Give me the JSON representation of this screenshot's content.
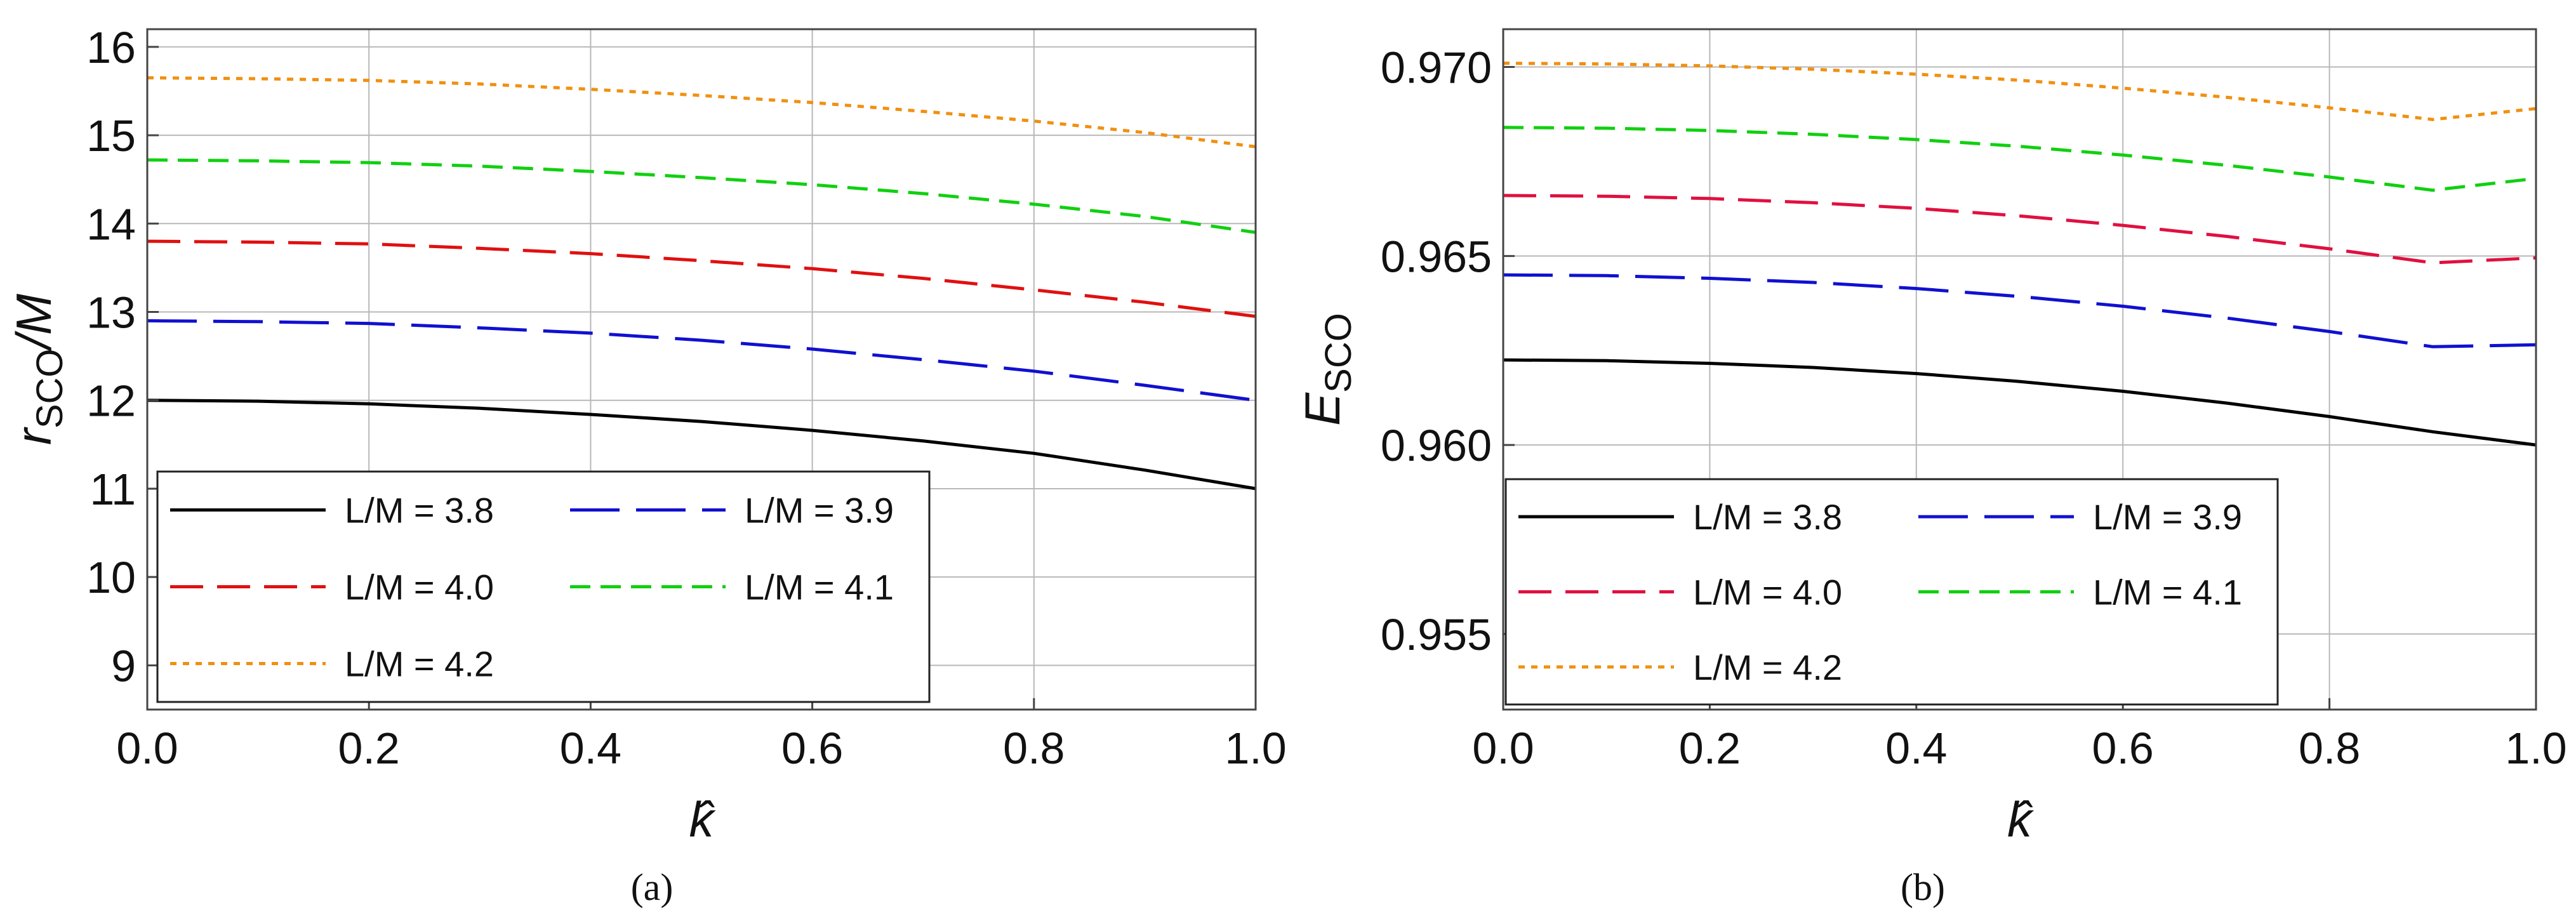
{
  "chart_data": [
    {
      "type": "line",
      "caption": "(a)",
      "ylabel": {
        "main": "r",
        "sub": "SCO",
        "tail": "/M"
      },
      "xlabel": "k̂",
      "xlim": [
        0,
        1
      ],
      "ylim": [
        8.5,
        16.2
      ],
      "xticks": [
        "0.0",
        "0.2",
        "0.4",
        "0.6",
        "0.8",
        "1.0"
      ],
      "yticks": [
        "9",
        "10",
        "11",
        "12",
        "13",
        "14",
        "15",
        "16"
      ],
      "grid": true,
      "legend_position": "bottom-left",
      "x": [
        0.0,
        0.1,
        0.2,
        0.3,
        0.4,
        0.5,
        0.6,
        0.7,
        0.8,
        0.9,
        1.0
      ],
      "series": [
        {
          "name": "L/M = 3.8",
          "color": "#000000",
          "dash": "solid",
          "values": [
            12.0,
            11.99,
            11.96,
            11.91,
            11.84,
            11.76,
            11.66,
            11.54,
            11.4,
            11.21,
            11.0
          ]
        },
        {
          "name": "L/M = 3.9",
          "color": "#1010d0",
          "dash": "long",
          "values": [
            12.9,
            12.89,
            12.87,
            12.82,
            12.76,
            12.68,
            12.58,
            12.46,
            12.33,
            12.17,
            12.0
          ]
        },
        {
          "name": "L/M = 4.0",
          "color": "#e01010",
          "dash": "medium",
          "values": [
            13.8,
            13.79,
            13.77,
            13.72,
            13.66,
            13.58,
            13.49,
            13.38,
            13.25,
            13.11,
            12.95
          ]
        },
        {
          "name": "L/M = 4.1",
          "color": "#10d010",
          "dash": "short",
          "values": [
            14.72,
            14.71,
            14.69,
            14.65,
            14.59,
            14.52,
            14.44,
            14.34,
            14.22,
            14.08,
            13.9
          ]
        },
        {
          "name": "L/M = 4.2",
          "color": "#f09010",
          "dash": "dotted",
          "values": [
            15.65,
            15.64,
            15.62,
            15.58,
            15.52,
            15.45,
            15.37,
            15.27,
            15.16,
            15.03,
            14.87
          ]
        }
      ]
    },
    {
      "type": "line",
      "caption": "(b)",
      "ylabel": {
        "main": "E",
        "sub": "SCO",
        "tail": ""
      },
      "xlabel": "k̂",
      "xlim": [
        0,
        1
      ],
      "ylim": [
        0.953,
        0.971
      ],
      "xticks": [
        "0.0",
        "0.2",
        "0.4",
        "0.6",
        "0.8",
        "1.0"
      ],
      "yticks": [
        "0.955",
        "0.960",
        "0.965",
        "0.970"
      ],
      "grid": true,
      "legend_position": "bottom-left",
      "x": [
        0.0,
        0.1,
        0.2,
        0.3,
        0.4,
        0.5,
        0.6,
        0.7,
        0.8,
        0.9,
        1.0
      ],
      "series": [
        {
          "name": "L/M = 3.8",
          "color": "#000000",
          "dash": "solid",
          "values": [
            0.96225,
            0.96223,
            0.96216,
            0.96205,
            0.96189,
            0.96168,
            0.96142,
            0.96111,
            0.96075,
            0.96035,
            0.96
          ]
        },
        {
          "name": "L/M = 3.9",
          "color": "#1010d0",
          "dash": "long",
          "values": [
            0.9645,
            0.96448,
            0.96441,
            0.9643,
            0.96414,
            0.96393,
            0.96367,
            0.96336,
            0.963,
            0.9626,
            0.96265
          ]
        },
        {
          "name": "L/M = 4.0",
          "color": "#e01040",
          "dash": "medium",
          "values": [
            0.9666,
            0.96658,
            0.96652,
            0.96641,
            0.96626,
            0.96606,
            0.96581,
            0.96552,
            0.96519,
            0.96482,
            0.96495
          ]
        },
        {
          "name": "L/M = 4.1",
          "color": "#10d010",
          "dash": "short",
          "values": [
            0.9684,
            0.96838,
            0.96832,
            0.96822,
            0.96808,
            0.9679,
            0.96767,
            0.9674,
            0.96709,
            0.96674,
            0.96705
          ]
        },
        {
          "name": "L/M = 4.2",
          "color": "#f09010",
          "dash": "dotted",
          "values": [
            0.9701,
            0.97008,
            0.97003,
            0.96994,
            0.96981,
            0.96965,
            0.96944,
            0.9692,
            0.96892,
            0.96861,
            0.9689
          ]
        }
      ]
    }
  ]
}
